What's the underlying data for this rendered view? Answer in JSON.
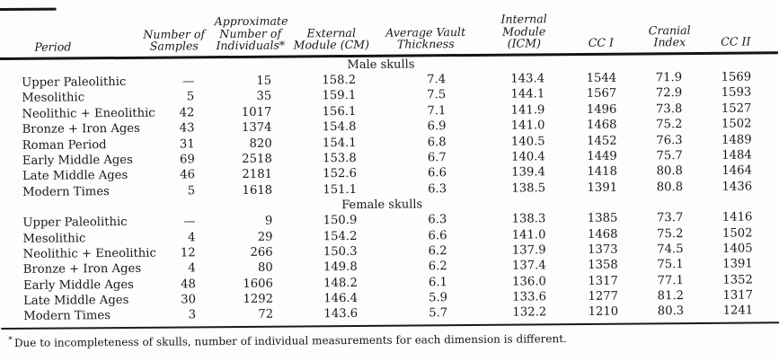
{
  "table": {
    "columns": [
      {
        "lines": [
          "Period"
        ]
      },
      {
        "lines": [
          "Number of",
          "Samples"
        ]
      },
      {
        "lines": [
          "Approximate",
          "Number of",
          "Individuals*"
        ]
      },
      {
        "lines": [
          "External",
          "Module (CM)"
        ]
      },
      {
        "lines": [
          "Average Vault",
          "Thickness"
        ]
      },
      {
        "lines": [
          "Internal",
          "Module (ICM)"
        ]
      },
      {
        "lines": [
          "CC I"
        ]
      },
      {
        "lines": [
          "Cranial Index"
        ]
      },
      {
        "lines": [
          "CC II"
        ]
      }
    ],
    "sections": [
      {
        "title": "Male skulls",
        "rows": [
          [
            "Upper Paleolithic",
            "—",
            "15",
            "158.2",
            "7.4",
            "143.4",
            "1544",
            "71.9",
            "1569"
          ],
          [
            "Mesolithic",
            "5",
            "35",
            "159.1",
            "7.5",
            "144.1",
            "1567",
            "72.9",
            "1593"
          ],
          [
            "Neolithic + Eneolithic",
            "42",
            "1017",
            "156.1",
            "7.1",
            "141.9",
            "1496",
            "73.8",
            "1527"
          ],
          [
            "Bronze + Iron Ages",
            "43",
            "1374",
            "154.8",
            "6.9",
            "141.0",
            "1468",
            "75.2",
            "1502"
          ],
          [
            "Roman Period",
            "31",
            "820",
            "154.1",
            "6.8",
            "140.5",
            "1452",
            "76.3",
            "1489"
          ],
          [
            "Early Middle Ages",
            "69",
            "2518",
            "153.8",
            "6.7",
            "140.4",
            "1449",
            "75.7",
            "1484"
          ],
          [
            "Late Middle Ages",
            "46",
            "2181",
            "152.6",
            "6.6",
            "139.4",
            "1418",
            "80.8",
            "1464"
          ],
          [
            "Modern Times",
            "5",
            "1618",
            "151.1",
            "6.3",
            "138.5",
            "1391",
            "80.8",
            "1436"
          ]
        ]
      },
      {
        "title": "Female skulls",
        "rows": [
          [
            "Upper Paleolithic",
            "—",
            "9",
            "150.9",
            "6.3",
            "138.3",
            "1385",
            "73.7",
            "1416"
          ],
          [
            "Mesolithic",
            "4",
            "29",
            "154.2",
            "6.6",
            "141.0",
            "1468",
            "75.2",
            "1502"
          ],
          [
            "Neolithic + Eneolithic",
            "12",
            "266",
            "150.3",
            "6.2",
            "137.9",
            "1373",
            "74.5",
            "1405"
          ],
          [
            "Bronze + Iron Ages",
            "4",
            "80",
            "149.8",
            "6.2",
            "137.4",
            "1358",
            "75.1",
            "1391"
          ],
          [
            "Early Middle Ages",
            "48",
            "1606",
            "148.2",
            "6.1",
            "136.0",
            "1317",
            "77.1",
            "1352"
          ],
          [
            "Late Middle Ages",
            "30",
            "1292",
            "146.4",
            "5.9",
            "133.6",
            "1277",
            "81.2",
            "1317"
          ],
          [
            "Modern Times",
            "3",
            "72",
            "143.6",
            "5.7",
            "132.2",
            "1210",
            "80.3",
            "1241"
          ]
        ]
      }
    ],
    "footnote_marker": "*",
    "footnote": "Due to incompleteness of skulls, number of individual measurements for each dimension is different."
  }
}
